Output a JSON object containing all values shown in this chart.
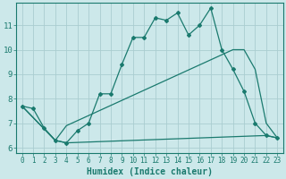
{
  "title": "",
  "xlabel": "Humidex (Indice chaleur)",
  "bg_color": "#cce8ea",
  "grid_color": "#aacdd0",
  "line_color": "#1a7a6e",
  "xlim": [
    -0.5,
    23.5
  ],
  "ylim": [
    5.8,
    11.9
  ],
  "xticks": [
    0,
    1,
    2,
    3,
    4,
    5,
    6,
    7,
    8,
    9,
    10,
    11,
    12,
    13,
    14,
    15,
    16,
    17,
    18,
    19,
    20,
    21,
    22,
    23
  ],
  "yticks": [
    6,
    7,
    8,
    9,
    10,
    11
  ],
  "line1_x": [
    0,
    1,
    2,
    3,
    4,
    5,
    6,
    7,
    8,
    9,
    10,
    11,
    12,
    13,
    14,
    15,
    16,
    17,
    18,
    19,
    20,
    21,
    22,
    23
  ],
  "line1_y": [
    7.7,
    7.6,
    6.8,
    6.3,
    6.2,
    6.7,
    7.0,
    8.2,
    8.2,
    9.4,
    10.5,
    10.5,
    11.3,
    11.2,
    11.5,
    10.6,
    11.0,
    11.7,
    10.0,
    9.2,
    8.3,
    7.0,
    6.5,
    6.4
  ],
  "line2_x": [
    0,
    3,
    4,
    22,
    23
  ],
  "line2_y": [
    7.7,
    6.3,
    6.2,
    6.5,
    6.4
  ],
  "line3_x": [
    0,
    3,
    4,
    19,
    20,
    21,
    22,
    23
  ],
  "line3_y": [
    7.7,
    6.3,
    6.9,
    10.0,
    10.0,
    9.2,
    7.0,
    6.4
  ],
  "marker": "D",
  "markersize": 2.0,
  "linewidth": 0.9,
  "xlabel_fontsize": 7,
  "tick_fontsize": 5.5,
  "ytick_fontsize": 6.5
}
